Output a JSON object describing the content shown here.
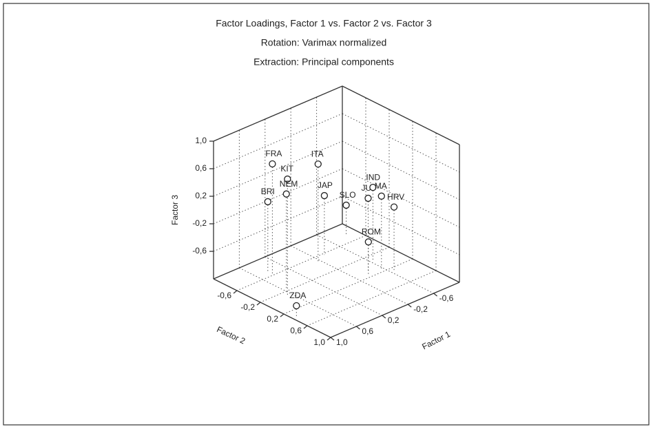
{
  "chart_data": {
    "type": "scatter3d",
    "title": "Factor Loadings, Factor 1 vs. Factor 2 vs. Factor 3",
    "subtitle": "Rotation: Varimax normalized",
    "subtitle2": "Extraction: Principal components",
    "xlabel": "Factor 1",
    "ylabel": "Factor 2",
    "zlabel": "Factor 3",
    "labels": [
      "FRA",
      "ITA",
      "KIT",
      "NEM",
      "BRI",
      "JAP",
      "SLO",
      "JU",
      "IND",
      "MA",
      "HRV",
      "ROM",
      "ZDA"
    ],
    "x": [
      0.45,
      -0.16,
      0.67,
      0.56,
      0.43,
      -0.33,
      -0.86,
      -0.41,
      -0.62,
      -0.58,
      -0.63,
      -0.35,
      0.94
    ],
    "y": [
      -0.6,
      -0.49,
      -0.1,
      -0.24,
      -0.7,
      -0.57,
      -0.78,
      0.09,
      -0.06,
      0.13,
      0.29,
      0.16,
      0.35
    ],
    "z": [
      0.62,
      0.42,
      0.7,
      0.38,
      0.02,
      -0.14,
      -0.58,
      0.07,
      0.08,
      0.05,
      -0.06,
      -0.51,
      -0.84
    ],
    "xlim": [
      -1,
      1
    ],
    "ylim": [
      -1,
      1
    ],
    "zlim": [
      -1,
      1
    ],
    "xticks": [
      {
        "value": -0.6,
        "label": "-0,6"
      },
      {
        "value": -0.2,
        "label": "-0,2"
      },
      {
        "value": 0.2,
        "label": "0,2"
      },
      {
        "value": 0.6,
        "label": "0,6"
      },
      {
        "value": 1,
        "label": "1,0"
      }
    ],
    "yticks": [
      {
        "value": -0.6,
        "label": "-0,6"
      },
      {
        "value": -0.2,
        "label": "-0,2"
      },
      {
        "value": 0.2,
        "label": "0,2"
      },
      {
        "value": 0.6,
        "label": "0,6"
      },
      {
        "value": 1,
        "label": "1,0"
      }
    ],
    "zticks": [
      {
        "value": -0.6,
        "label": "-0,6"
      },
      {
        "value": -0.2,
        "label": "-0,2"
      },
      {
        "value": 0.2,
        "label": "0,2"
      },
      {
        "value": 0.6,
        "label": "0,6"
      },
      {
        "value": 1,
        "label": "1,0"
      }
    ],
    "grid": true,
    "color": "#222222"
  }
}
